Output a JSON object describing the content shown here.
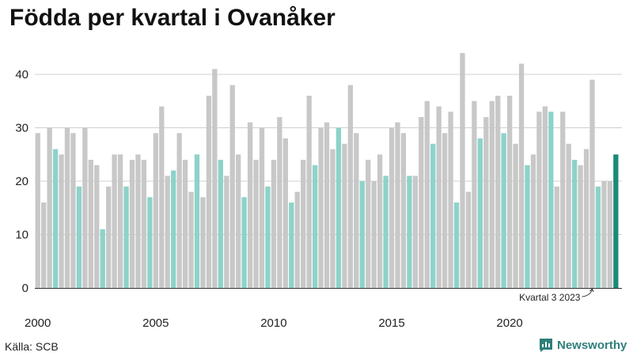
{
  "title": "Födda per kvartal i Ovanåker",
  "source": "Källa: SCB",
  "brand": {
    "name": "Newsworthy",
    "icon": "newsworthy-logo-icon"
  },
  "colors": {
    "default_bar": "#c8c8c8",
    "q4_bar": "#8dd3c9",
    "latest_bar": "#1a8a78",
    "brand": "#2f7f7b"
  },
  "chart_data": {
    "type": "bar",
    "title": "Födda per kvartal i Ovanåker",
    "start_year": 2000,
    "quarters_per_year": 4,
    "values": [
      29,
      16,
      30,
      26,
      25,
      30,
      29,
      19,
      30,
      24,
      23,
      11,
      19,
      25,
      25,
      19,
      24,
      25,
      24,
      17,
      29,
      34,
      21,
      22,
      29,
      24,
      18,
      25,
      17,
      36,
      41,
      24,
      21,
      38,
      25,
      17,
      31,
      24,
      30,
      19,
      24,
      32,
      28,
      16,
      18,
      24,
      36,
      23,
      30,
      31,
      26,
      30,
      27,
      38,
      29,
      20,
      24,
      20,
      25,
      21,
      30,
      31,
      29,
      21,
      21,
      32,
      35,
      27,
      34,
      29,
      33,
      16,
      44,
      18,
      35,
      28,
      32,
      35,
      36,
      29,
      36,
      27,
      42,
      23,
      25,
      33,
      34,
      33,
      19,
      33,
      27,
      24,
      23,
      26,
      39,
      19,
      20,
      20,
      25
    ],
    "x_ticks": [
      "2000",
      "2005",
      "2010",
      "2015",
      "2020"
    ],
    "y_ticks": [
      0,
      10,
      20,
      30,
      40
    ],
    "ylim": [
      0,
      45
    ],
    "grid": true,
    "highlight": "q4",
    "annotation": {
      "text": "Kvartal 3 2023",
      "target_index": 94
    }
  }
}
